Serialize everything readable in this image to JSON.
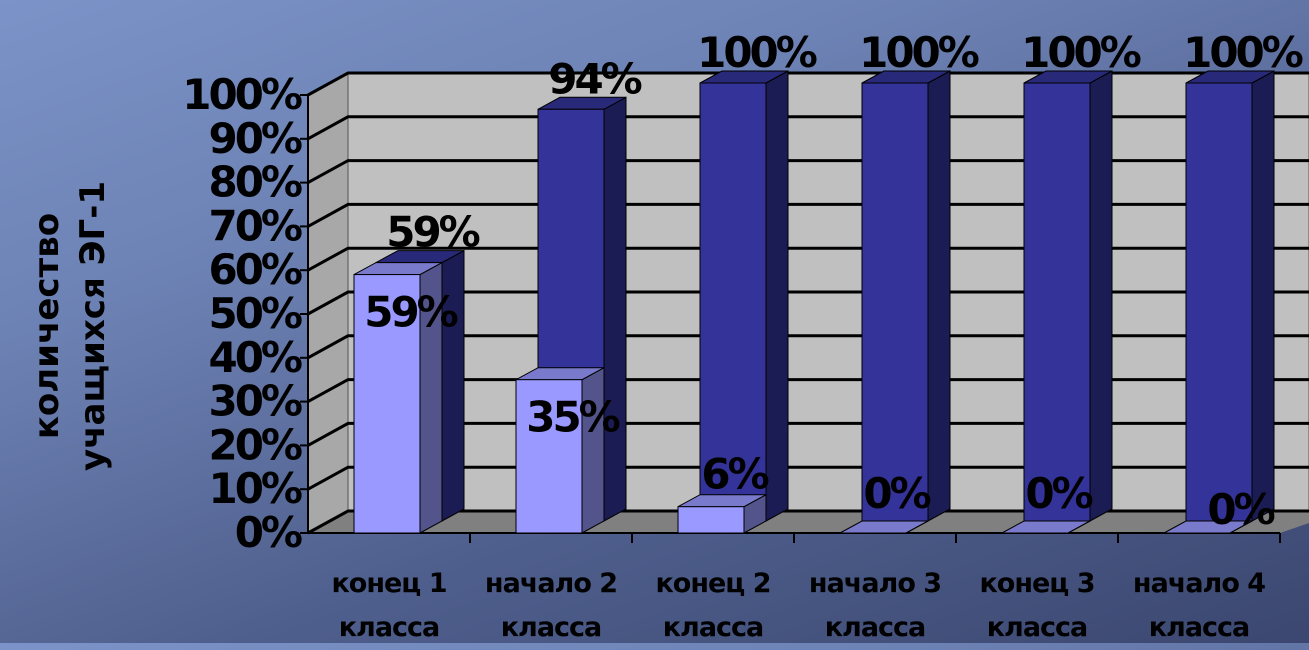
{
  "chart_data": {
    "type": "bar3d",
    "y_label": "количество учащихся ЭГ-1",
    "categories": [
      "конец 1 класса",
      "начало 2 класса",
      "конец 2 класса",
      "начало 3 класса",
      "конец 3 класса",
      "начало 4 класса"
    ],
    "series": [
      {
        "color": "#9999ff",
        "values": [
          59,
          35,
          6,
          0,
          0,
          0
        ],
        "value_labels": [
          "59%",
          "35%",
          "6%",
          "0%",
          "0%",
          "0%"
        ]
      },
      {
        "color": "#333399",
        "values": [
          59,
          94,
          100,
          100,
          100,
          100
        ],
        "value_labels": [
          "59%",
          "94%",
          "100%",
          "100%",
          "100%",
          "100%"
        ]
      }
    ],
    "ylim": [
      0,
      100
    ],
    "yticks": [
      {
        "value": 0,
        "label": "0%"
      },
      {
        "value": 10,
        "label": "10%"
      },
      {
        "value": 20,
        "label": "20%"
      },
      {
        "value": 30,
        "label": "30%"
      },
      {
        "value": 40,
        "label": "40%"
      },
      {
        "value": 50,
        "label": "50%"
      },
      {
        "value": 60,
        "label": "60%"
      },
      {
        "value": 70,
        "label": "70%"
      },
      {
        "value": 80,
        "label": "80%"
      },
      {
        "value": 90,
        "label": "90%"
      },
      {
        "value": 100,
        "label": "100%"
      }
    ],
    "grid": true
  }
}
